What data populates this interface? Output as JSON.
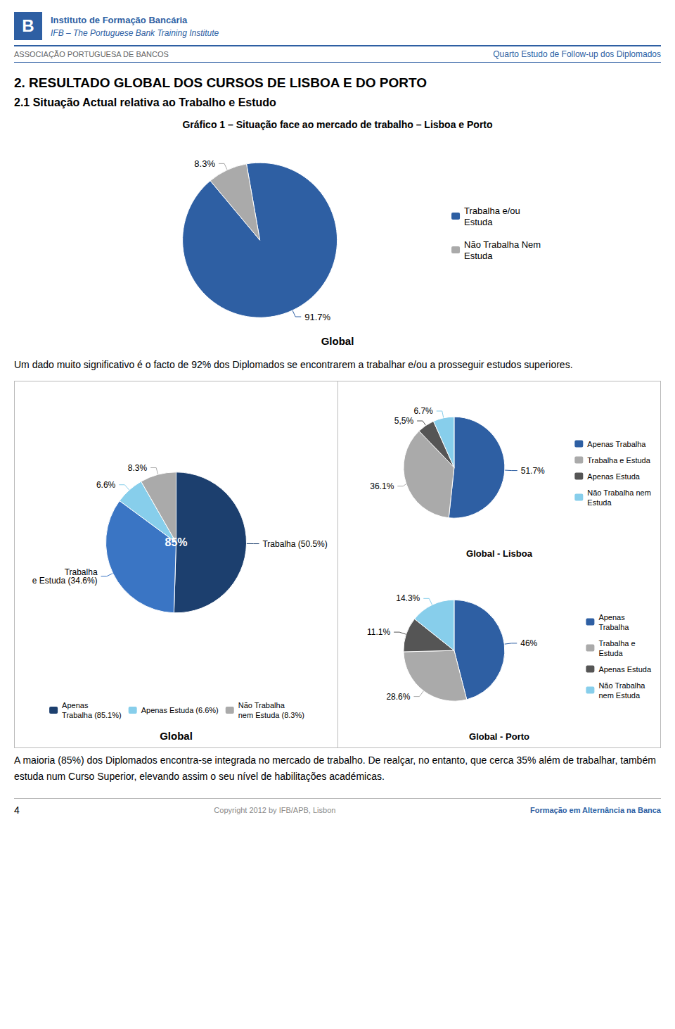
{
  "header": [
    "B",
    "Instituto de Formação Bancária",
    "IFB – The Portuguese Bank Training Institute",
    "ASSOCIAÇÃO PORTUGUESA DE BANCOS",
    "Quarto Estudo de Follow-up dos Diplomados"
  ],
  "page_title": "2. RESULTADO GLOBAL DOS CURSOS DE LISBOA E DO PORTO",
  "section_title": "2.1 Situação Actual relativa ao Trabalho e Estudo",
  "paragraphs": [
    "Um dado muito significativo é o facto de 92% dos Diplomados se encontrarem a trabalhar e/ou a prosseguir estudos superiores.",
    "A maioria (85%) dos Diplomados encontra-se integrada no mercado de trabalho. De realçar, no entanto, que cerca 35% além de trabalhar, também estuda num Curso Superior, elevando assim o seu nível de habilitações académicas."
  ],
  "footer": [
    "4",
    "Copyright 2012 by IFB/APB, Lisbon",
    "Formação em Alternância na Banca"
  ],
  "chart_data": [
    {
      "type": "pie",
      "title": "Gráfico 1 – Situação face ao mercado de trabalho – Lisboa e Porto",
      "subtitle": "Global",
      "categories": [
        "Trabalha e/ou\nEstuda",
        "Não Trabalha Nem\nEstuda"
      ],
      "values": [
        91.7,
        8.3
      ],
      "value_labels": [
        "91.7%",
        "8.3%"
      ],
      "colors": [
        "#2E5FA3",
        "#AAAAAA"
      ],
      "data_labels": true,
      "legend": "right"
    },
    {
      "type": "pie",
      "subtitle": "Global",
      "categories": [
        "Apenas\nTrabalha (85.1%)",
        null,
        "Apenas Estuda (6.6%)",
        "Não Trabalha\nnem Estuda (8.3%)"
      ],
      "values": [
        50.5,
        34.6,
        6.6,
        8.3
      ],
      "value_labels": [
        "Trabalha (50.5%)",
        "Trabalha\ne Estuda (34.6%)",
        "6.6%",
        "8.3%"
      ],
      "colors": [
        "#1C3F6E",
        "#3A75C4",
        "#87CEEB",
        "#AAAAAA"
      ],
      "data_labels": true,
      "legend": "bottom",
      "annotations": [
        "85%"
      ]
    },
    {
      "type": "pie",
      "subtitle": "Global - Lisboa",
      "categories": [
        "Apenas Trabalha",
        "Trabalha e Estuda",
        "Apenas Estuda",
        "Não Trabalha nem\nEstuda"
      ],
      "values": [
        51.7,
        36.1,
        5.5,
        6.7
      ],
      "value_labels": [
        "51.7%",
        "36.1%",
        "5,5%",
        "6.7%"
      ],
      "colors": [
        "#2E5FA3",
        "#AAAAAA",
        "#555555",
        "#87CEEB"
      ],
      "data_labels": true,
      "legend": "right"
    },
    {
      "type": "pie",
      "subtitle": "Global - Porto",
      "categories": [
        "Apenas\nTrabalha",
        "Trabalha e\nEstuda",
        "Apenas Estuda",
        "Não Trabalha\nnem Estuda"
      ],
      "values": [
        46.0,
        28.6,
        11.1,
        14.3
      ],
      "value_labels": [
        "46%",
        "28.6%",
        "11.1%",
        "14.3%"
      ],
      "colors": [
        "#2E5FA3",
        "#AAAAAA",
        "#555555",
        "#87CEEB"
      ],
      "data_labels": true,
      "legend": "right"
    }
  ]
}
